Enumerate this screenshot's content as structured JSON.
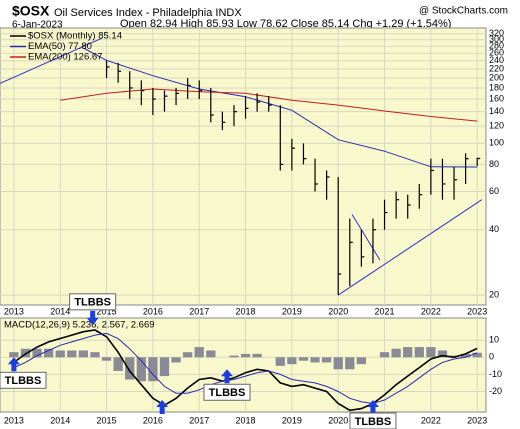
{
  "header": {
    "symbol": "$OSX",
    "name": "Oil Services Index - Philadelphia INDX",
    "source": "@ StockCharts.com",
    "date": "6-Jan-2023",
    "quote": "Open 82.94 High 85.93 Low 78.62 Close 85.14 Chg +1.29 (+1.54%)"
  },
  "chart_data": [
    {
      "type": "ohlc",
      "log_scale": true,
      "grid": true,
      "background": "#f8f8cc",
      "x": [
        2015.0,
        2015.25,
        2015.5,
        2015.75,
        2016.0,
        2016.25,
        2016.5,
        2016.75,
        2017.0,
        2017.25,
        2017.5,
        2017.75,
        2018.0,
        2018.25,
        2018.5,
        2018.75,
        2019.0,
        2019.25,
        2019.5,
        2019.75,
        2020.0,
        2020.25,
        2020.5,
        2020.75,
        2021.0,
        2021.25,
        2021.5,
        2021.75,
        2022.0,
        2022.25,
        2022.5,
        2022.75,
        2023.0
      ],
      "series": [
        {
          "name": "$OSX (Monthly) 85.14",
          "color": "#000000",
          "high": [
            240,
            235,
            215,
            195,
            180,
            175,
            180,
            200,
            195,
            180,
            140,
            150,
            165,
            170,
            165,
            150,
            105,
            100,
            85,
            75,
            70,
            45,
            40,
            45,
            55,
            60,
            58,
            65,
            85,
            85,
            78,
            90,
            85.93
          ],
          "low": [
            200,
            190,
            160,
            150,
            135,
            140,
            150,
            160,
            160,
            125,
            115,
            120,
            130,
            140,
            140,
            75,
            75,
            80,
            60,
            55,
            20,
            22,
            27,
            28,
            40,
            45,
            45,
            50,
            58,
            55,
            55,
            65,
            78.62
          ],
          "close": [
            225,
            215,
            180,
            175,
            160,
            165,
            170,
            185,
            175,
            135,
            125,
            140,
            145,
            155,
            150,
            80,
            95,
            85,
            65,
            70,
            25,
            35,
            30,
            40,
            48,
            55,
            52,
            58,
            75,
            65,
            68,
            85,
            85.14
          ]
        }
      ],
      "lines": [
        {
          "name": "EMA(50) 77.80",
          "color": "#2a2ab0",
          "x": [
            2014.5,
            2015,
            2016,
            2017,
            2018,
            2019,
            2020,
            2021,
            2022,
            2023.0
          ],
          "values": [
            275,
            241,
            205,
            178,
            164,
            142,
            104,
            92,
            78,
            77.8
          ]
        },
        {
          "name": "EMA(200) 126.67",
          "color": "#c02020",
          "x": [
            2014.0,
            2015,
            2016,
            2017,
            2018,
            2019,
            2020,
            2021,
            2022,
            2023.0
          ],
          "values": [
            158,
            170,
            178,
            173,
            170,
            158,
            150,
            141,
            133,
            126.67
          ]
        }
      ],
      "trendlines": [
        {
          "color": "#3030d0",
          "x": [
            2012.7,
            2014.9
          ],
          "values": [
            189,
            305
          ]
        },
        {
          "color": "#3030d0",
          "x": [
            2020.0,
            2023.1
          ],
          "values": [
            20,
            55
          ]
        },
        {
          "color": "#3030d0",
          "x": [
            2020.3,
            2020.9
          ],
          "values": [
            47,
            29
          ]
        }
      ],
      "xlim": [
        2012.7,
        2023.19
      ],
      "xticks": [
        2013,
        2014,
        2015,
        2016,
        2017,
        2018,
        2019,
        2020,
        2021,
        2022,
        2023
      ],
      "ylim": [
        18,
        340
      ],
      "yticks": [
        20,
        40,
        60,
        80,
        100,
        120,
        140,
        160,
        180,
        200,
        220,
        240,
        260,
        280,
        300,
        320
      ]
    },
    {
      "type": "macd",
      "label": "MACD(12,26,9) 5.236, 2.567, 2.669",
      "grid": true,
      "background": "#f8f8cc",
      "x": [
        2013.0,
        2013.25,
        2013.5,
        2013.75,
        2014.0,
        2014.25,
        2014.5,
        2014.75,
        2015.0,
        2015.25,
        2015.5,
        2015.75,
        2016.0,
        2016.25,
        2016.5,
        2016.75,
        2017.0,
        2017.25,
        2017.5,
        2017.75,
        2018.0,
        2018.25,
        2018.5,
        2018.75,
        2019.0,
        2019.25,
        2019.5,
        2019.75,
        2020.0,
        2020.25,
        2020.5,
        2020.75,
        2021.0,
        2021.25,
        2021.5,
        2021.75,
        2022.0,
        2022.25,
        2022.5,
        2022.75,
        2023.0
      ],
      "series": [
        {
          "color": "#000000",
          "values": [
            -3,
            2,
            6,
            9,
            11,
            13,
            15,
            16,
            12,
            3,
            -8,
            -16,
            -24,
            -28,
            -24,
            -18,
            -13,
            -12,
            -14,
            -12,
            -9,
            -7,
            -8,
            -15,
            -17,
            -16,
            -18,
            -20,
            -27,
            -31,
            -30,
            -27,
            -22,
            -16,
            -11,
            -6,
            -1,
            1,
            0,
            2,
            5.236
          ]
        },
        {
          "color": "#2a2ab0",
          "values": [
            -6,
            -3,
            1,
            4,
            7,
            9,
            11,
            13,
            14,
            11,
            5,
            -2,
            -10,
            -17,
            -21,
            -21,
            -19,
            -16,
            -14,
            -13,
            -11,
            -9,
            -8,
            -10,
            -13,
            -14,
            -15,
            -17,
            -20,
            -24,
            -26,
            -27,
            -25,
            -21,
            -17,
            -12,
            -7,
            -3,
            -1,
            0,
            2.567
          ]
        },
        {
          "color": "#8a8a96",
          "histogram": true,
          "values": [
            3,
            5,
            5,
            5,
            4,
            4,
            4,
            3,
            -2,
            -8,
            -13,
            -14,
            -14,
            -11,
            -3,
            3,
            6,
            4,
            0,
            1,
            2,
            2,
            0,
            -5,
            -4,
            -2,
            -3,
            -3,
            -7,
            -7,
            -4,
            0,
            3,
            5,
            6,
            6,
            6,
            4,
            1,
            2,
            2.669
          ]
        }
      ],
      "annotations": [
        {
          "x": 2014.7,
          "y": 19,
          "direction": "down",
          "text": "TLBBS"
        },
        {
          "x": 2013.0,
          "y": 0,
          "direction": "up",
          "text": "TLBBS"
        },
        {
          "x": 2017.6,
          "y": -7,
          "direction": "up",
          "text": "TLBBS"
        },
        {
          "x": 2016.2,
          "y": -25,
          "direction": "up"
        },
        {
          "x": 2020.75,
          "y": -25,
          "direction": "up",
          "text": "TLBBS"
        }
      ],
      "xlim": [
        2012.7,
        2023.19
      ],
      "xticks": [
        2013,
        2014,
        2015,
        2016,
        2017,
        2018,
        2019,
        2020,
        2021,
        2022,
        2023
      ],
      "ylim": [
        -32,
        23
      ],
      "yticks": [
        10,
        0,
        -10,
        -20
      ]
    }
  ]
}
